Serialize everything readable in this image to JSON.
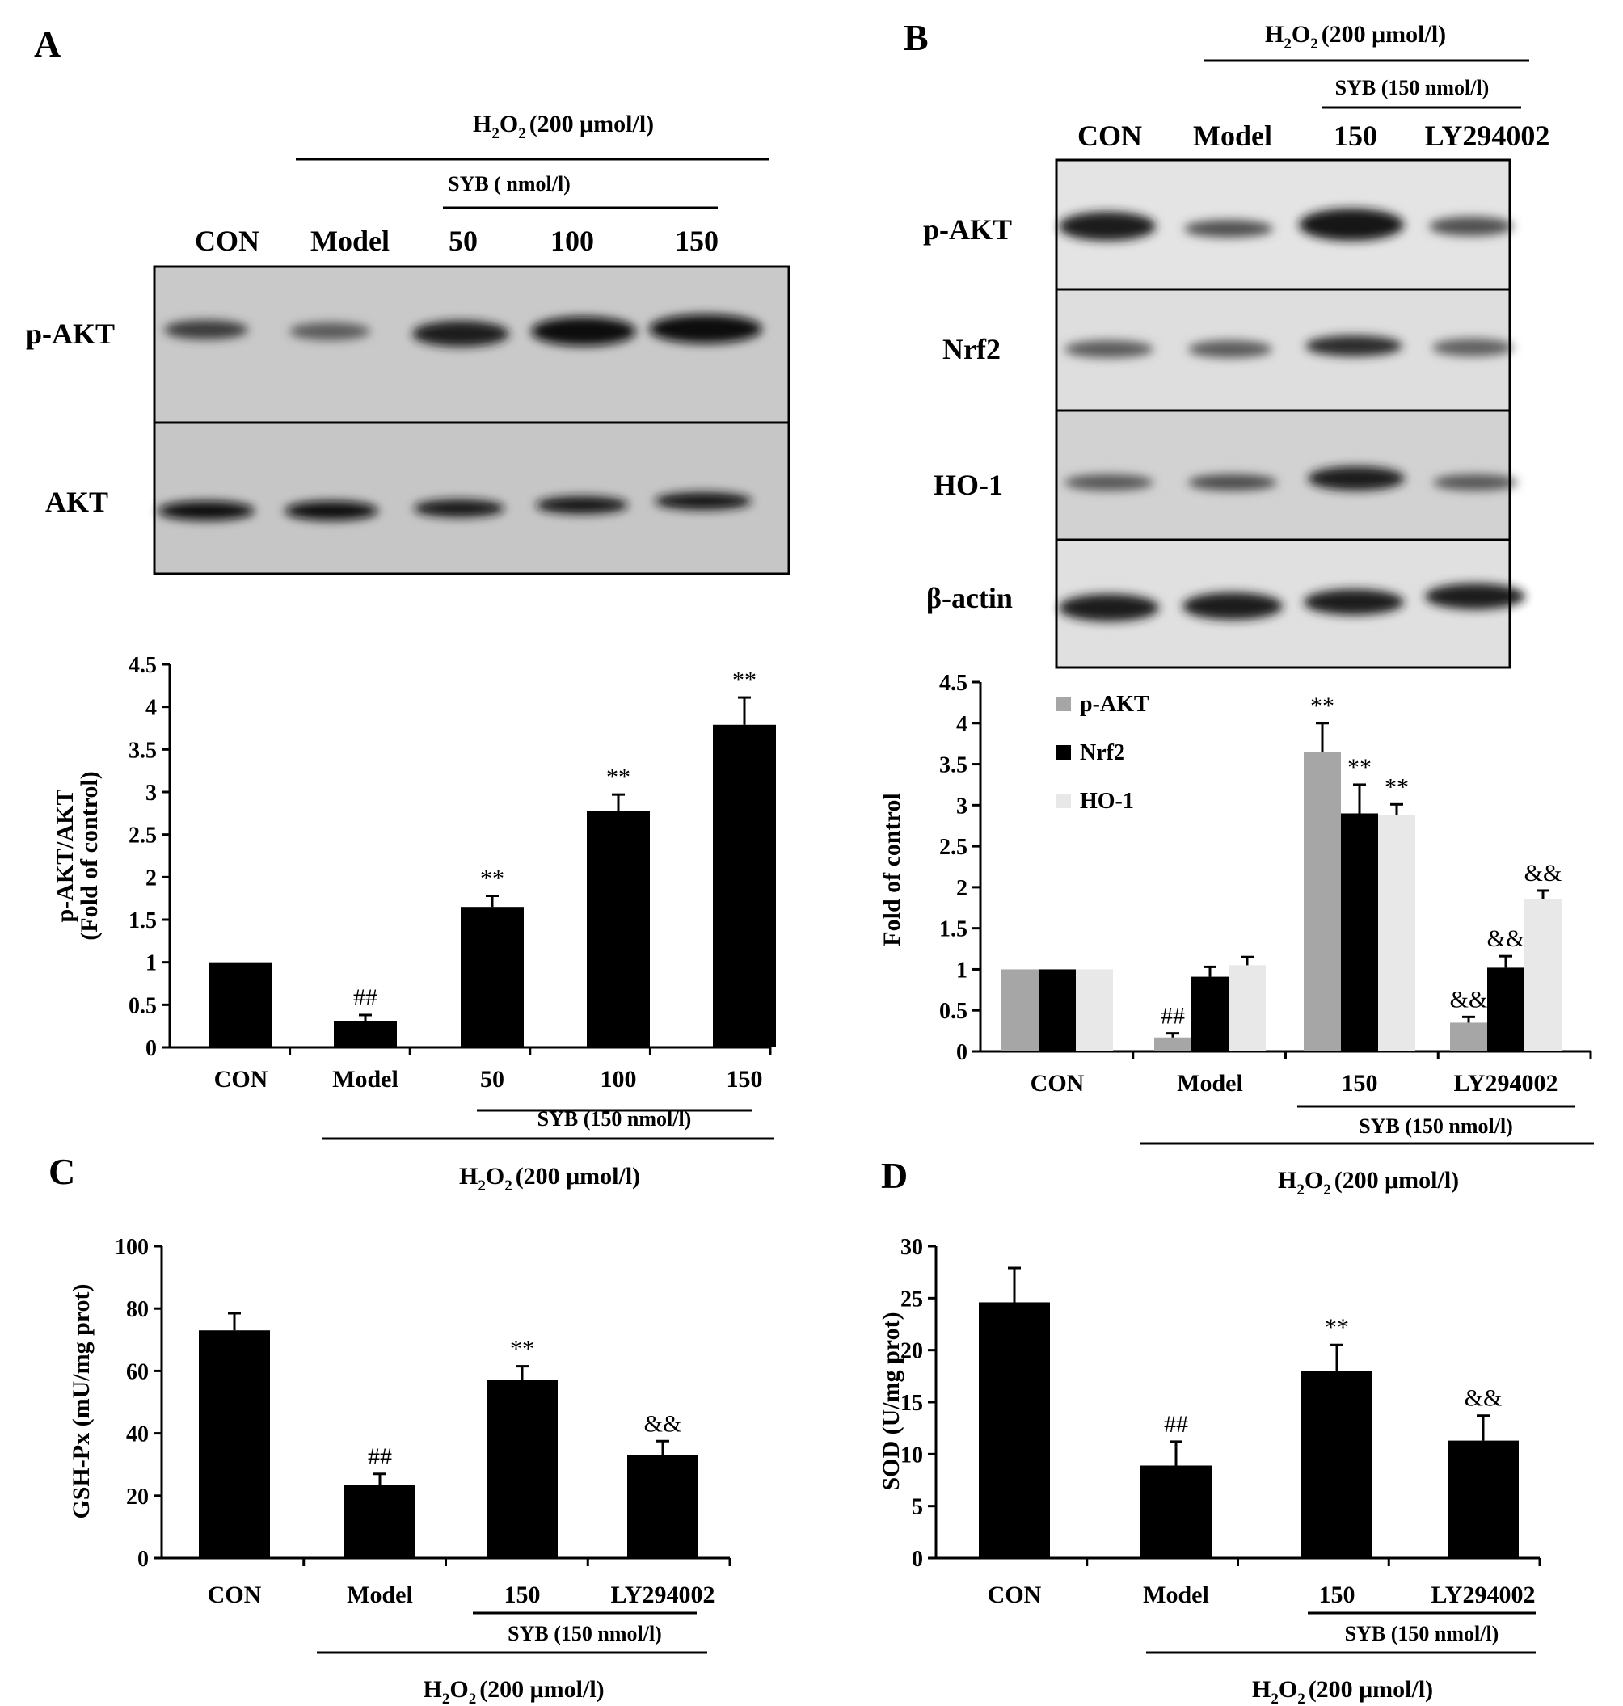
{
  "panel_a": {
    "letter": "A",
    "blot": {
      "h2o2": "(200 μmol/l)",
      "syb_label": "SYB ( nmol/l)",
      "lanes": [
        "CON",
        "Model",
        "50",
        "100",
        "150"
      ],
      "rows": [
        "p-AKT",
        "AKT"
      ]
    }
  },
  "panel_b": {
    "letter": "B",
    "blot": {
      "h2o2": "(200 μmol/l)",
      "syb_label": "SYB (150 nmol/l)",
      "lanes": [
        "CON",
        "Model",
        "150",
        "LY294002"
      ],
      "rows": [
        "p-AKT",
        "Nrf2",
        "HO-1",
        "β-actin"
      ]
    }
  },
  "panel_c": {
    "letter": "C"
  },
  "panel_d": {
    "letter": "D"
  },
  "h2o2_prefix": "H",
  "h2o2_mid": "O",
  "h2o2_sub": "2",
  "chart_data": [
    {
      "id": "A",
      "type": "bar",
      "categories": [
        "CON",
        "Model",
        "50",
        "100",
        "150"
      ],
      "series": [
        {
          "values": [
            1.0,
            0.31,
            1.65,
            2.78,
            3.79
          ],
          "errors": [
            0,
            0.07,
            0.13,
            0.19,
            0.32
          ],
          "color": "#000000"
        }
      ],
      "annotations": [
        "",
        "##",
        "**",
        "**",
        "**"
      ],
      "ylabel": "p-AKT/AKT",
      "ylabel2": "(Fold of control)",
      "ylim": [
        0,
        4.5
      ],
      "yticks": [
        "0",
        "0.5",
        "1",
        "1.5",
        "2",
        "2.5",
        "3",
        "3.5",
        "4",
        "4.5"
      ],
      "group_syb": "SYB (150 nmol/l)",
      "group_h2o2": "(200 μmol/l)"
    },
    {
      "id": "B",
      "type": "bar",
      "categories": [
        "CON",
        "Model",
        "150",
        "LY294002"
      ],
      "series": [
        {
          "name": "p-AKT",
          "values": [
            1.0,
            0.17,
            3.65,
            0.35
          ],
          "errors": [
            0,
            0.05,
            0.35,
            0.07
          ],
          "annotations": [
            "",
            "##",
            "**",
            "&&"
          ],
          "color": "#a6a6a6"
        },
        {
          "name": "Nrf2",
          "values": [
            1.0,
            0.91,
            2.9,
            1.02
          ],
          "errors": [
            0,
            0.12,
            0.35,
            0.14
          ],
          "annotations": [
            "",
            "",
            "**",
            "&&"
          ],
          "color": "#000000"
        },
        {
          "name": "HO-1",
          "values": [
            1.0,
            1.05,
            2.88,
            1.86
          ],
          "errors": [
            0,
            0.1,
            0.13,
            0.1
          ],
          "annotations": [
            "",
            "",
            "**",
            "&&"
          ],
          "color": "#e8e8e8"
        }
      ],
      "ylabel": "Fold of control",
      "ylim": [
        0,
        4.5
      ],
      "yticks": [
        "0",
        "0.5",
        "1",
        "1.5",
        "2",
        "2.5",
        "3",
        "3.5",
        "4",
        "4.5"
      ],
      "legend_position": "top-left",
      "group_syb": "SYB (150 nmol/l)",
      "group_h2o2": "(200 μmol/l)"
    },
    {
      "id": "C",
      "type": "bar",
      "categories": [
        "CON",
        "Model",
        "150",
        "LY294002"
      ],
      "series": [
        {
          "values": [
            73,
            23.5,
            57,
            33
          ],
          "errors": [
            5.5,
            3.5,
            4.5,
            4.5
          ],
          "color": "#000000"
        }
      ],
      "annotations": [
        "",
        "##",
        "**",
        "&&"
      ],
      "ylabel": "GSH-Px (mU/mg prot)",
      "ylim": [
        0,
        100
      ],
      "yticks": [
        "0",
        "20",
        "40",
        "60",
        "80",
        "100"
      ],
      "group_syb": "SYB (150 nmol/l)",
      "group_h2o2": "(200 μmol/l)"
    },
    {
      "id": "D",
      "type": "bar",
      "categories": [
        "CON",
        "Model",
        "150",
        "LY294002"
      ],
      "series": [
        {
          "values": [
            24.6,
            8.9,
            18.0,
            11.3
          ],
          "errors": [
            3.3,
            2.3,
            2.5,
            2.4
          ],
          "color": "#000000"
        }
      ],
      "annotations": [
        "",
        "##",
        "**",
        "&&"
      ],
      "ylabel": "SOD (U/mg prot)",
      "ylim": [
        0,
        30
      ],
      "yticks": [
        "0",
        "5",
        "10",
        "15",
        "20",
        "25",
        "30"
      ],
      "group_syb": "SYB (150 nmol/l)",
      "group_h2o2": "(200 μmol/l)"
    }
  ]
}
